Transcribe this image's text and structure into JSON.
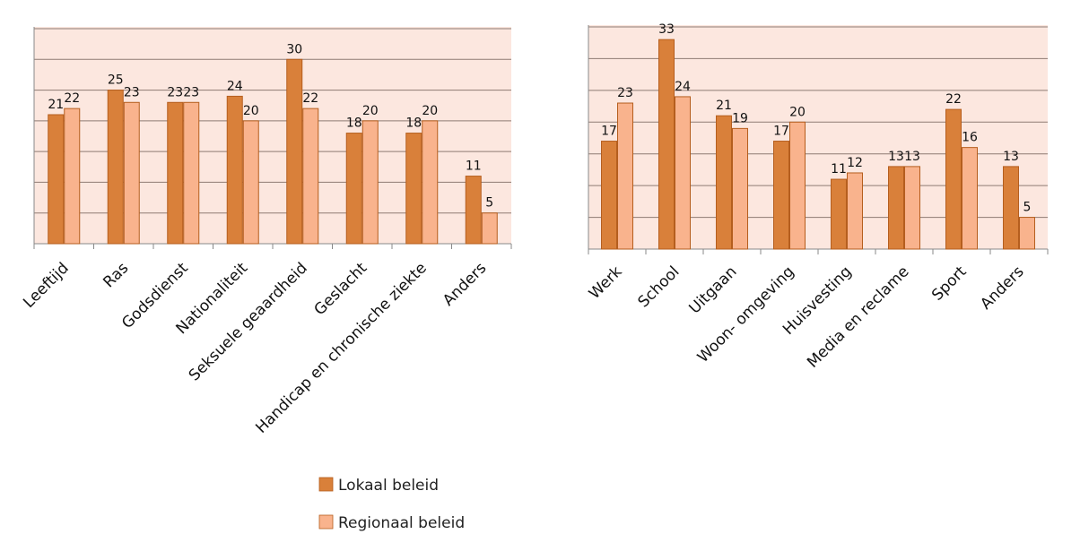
{
  "colors": {
    "lokaal": "#D9803A",
    "regionaal": "#F9B38D",
    "bar_outline": "#B55E1E",
    "plot_bg": "#FCE7DF",
    "grid": "#8E7B73",
    "axis": "#888888"
  },
  "legend": {
    "items": [
      {
        "label": "Lokaal beleid",
        "color": "#D9803A"
      },
      {
        "label": "Regionaal beleid",
        "color": "#F9B38D"
      }
    ]
  },
  "chart_data": [
    {
      "type": "bar",
      "title": "",
      "xlabel": "",
      "ylabel": "",
      "ylim": [
        0,
        35
      ],
      "grid": true,
      "categories": [
        "Leeftijd",
        "Ras",
        "Godsdienst",
        "Nationaliteit",
        "Seksuele geaardheid",
        "Geslacht",
        "Handicap en chronische ziekte",
        "Anders"
      ],
      "series": [
        {
          "name": "Lokaal beleid",
          "values": [
            21,
            25,
            23,
            24,
            30,
            18,
            18,
            11
          ]
        },
        {
          "name": "Regionaal beleid",
          "values": [
            22,
            23,
            23,
            20,
            22,
            20,
            20,
            5
          ]
        }
      ]
    },
    {
      "type": "bar",
      "title": "",
      "xlabel": "",
      "ylabel": "",
      "ylim": [
        0,
        35
      ],
      "grid": true,
      "categories": [
        "Werk",
        "School",
        "Uitgaan",
        "Woon- omgeving",
        "Huisvesting",
        "Media en reclame",
        "Sport",
        "Anders"
      ],
      "series": [
        {
          "name": "Lokaal beleid",
          "values": [
            17,
            33,
            21,
            17,
            11,
            13,
            22,
            13
          ]
        },
        {
          "name": "Regionaal beleid",
          "values": [
            23,
            24,
            19,
            20,
            12,
            13,
            16,
            5
          ]
        }
      ]
    }
  ]
}
